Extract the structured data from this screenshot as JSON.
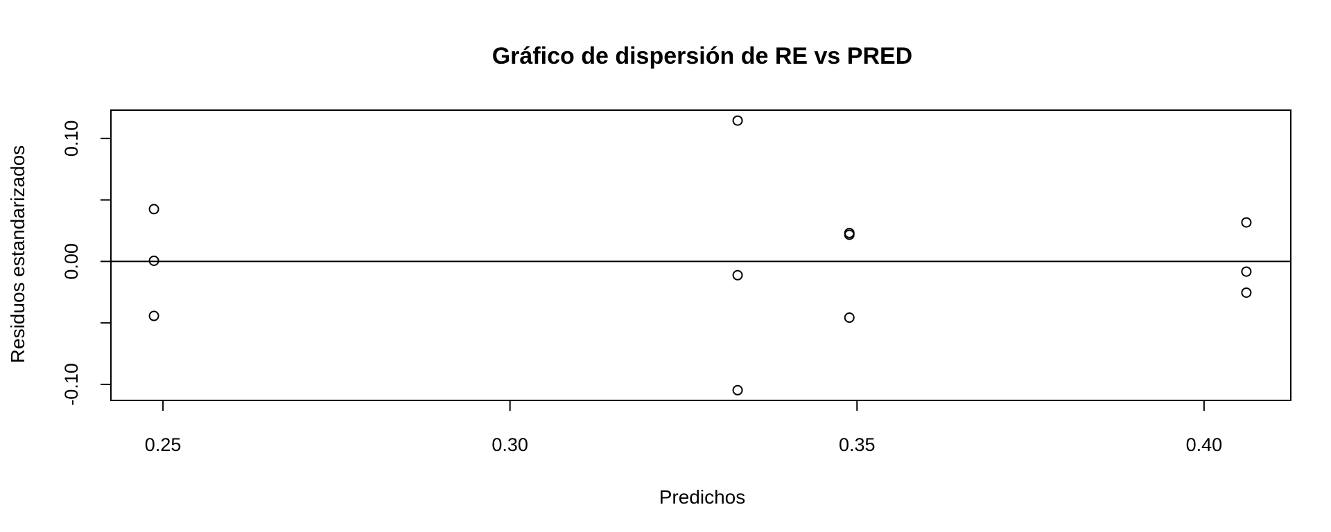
{
  "chart_data": {
    "type": "scatter",
    "title": "Gráfico de dispersión de RE vs PRED",
    "xlabel": "Predichos",
    "ylabel": "Residuos estandarizados",
    "xlim": [
      0.2425,
      0.4125
    ],
    "ylim": [
      -0.113,
      0.123
    ],
    "x_ticks": [
      0.25,
      0.3,
      0.35,
      0.4
    ],
    "x_tick_labels": [
      "0.25",
      "0.30",
      "0.35",
      "0.40"
    ],
    "y_ticks": [
      -0.1,
      -0.05,
      0.0,
      0.05,
      0.1
    ],
    "y_tick_labels": [
      "-0.10",
      "",
      "0.00",
      "",
      "0.10"
    ],
    "reference_line_y": 0,
    "grid": false,
    "points": [
      {
        "x": 0.2487,
        "y": 0.0425
      },
      {
        "x": 0.2487,
        "y": 0.0005
      },
      {
        "x": 0.2487,
        "y": -0.0443
      },
      {
        "x": 0.3328,
        "y": 0.1145
      },
      {
        "x": 0.3328,
        "y": -0.0112
      },
      {
        "x": 0.3328,
        "y": -0.1047
      },
      {
        "x": 0.3489,
        "y": 0.0231
      },
      {
        "x": 0.3489,
        "y": 0.0217
      },
      {
        "x": 0.3489,
        "y": -0.0457
      },
      {
        "x": 0.4061,
        "y": 0.0317
      },
      {
        "x": 0.4061,
        "y": -0.0083
      },
      {
        "x": 0.4061,
        "y": -0.0254
      }
    ]
  }
}
